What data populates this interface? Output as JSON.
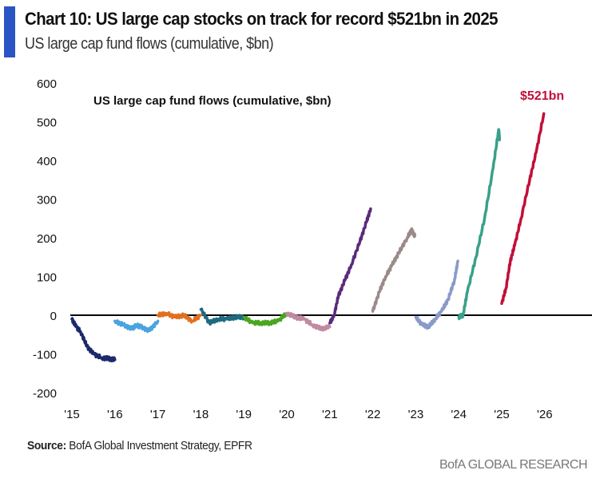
{
  "header": {
    "title": "Chart 10: US large cap stocks on track for record $521bn in 2025",
    "subtitle": "US large cap fund flows (cumulative, $bn)"
  },
  "footer": {
    "source_label": "Source:",
    "source_text": "BofA Global Investment Strategy, EPFR",
    "brand": "BofA GLOBAL RESEARCH"
  },
  "chart_data": {
    "type": "line",
    "title": "US large cap fund flows (cumulative, $bn)",
    "xlabel": "",
    "ylabel": "",
    "ylim": [
      -200,
      600
    ],
    "yticks": [
      "600",
      "500",
      "400",
      "300",
      "200",
      "100",
      "0",
      "-100",
      "-200"
    ],
    "ytick_values": [
      600,
      500,
      400,
      300,
      200,
      100,
      0,
      -100,
      -200
    ],
    "xticks": [
      "'15",
      "'16",
      "'17",
      "'18",
      "'19",
      "'20",
      "'21",
      "'22",
      "'23",
      "'24",
      "'25",
      "'26"
    ],
    "xlim": [
      2015,
      2026.9
    ],
    "annotation": {
      "text": "$521bn",
      "color": "#c0103a"
    },
    "series": [
      {
        "name": "2015",
        "color": "#1b2a6b",
        "start": 2015,
        "points": [
          [
            0,
            -10
          ],
          [
            0.1,
            -30
          ],
          [
            0.2,
            -42
          ],
          [
            0.35,
            -80
          ],
          [
            0.5,
            -100
          ],
          [
            0.7,
            -110
          ],
          [
            0.85,
            -112
          ],
          [
            1,
            -115
          ]
        ]
      },
      {
        "name": "2016",
        "color": "#4aa3e0",
        "start": 2016,
        "points": [
          [
            0,
            -15
          ],
          [
            0.2,
            -25
          ],
          [
            0.4,
            -35
          ],
          [
            0.5,
            -25
          ],
          [
            0.6,
            -30
          ],
          [
            0.8,
            -40
          ],
          [
            1,
            -15
          ]
        ]
      },
      {
        "name": "2017",
        "color": "#e07020",
        "start": 2017,
        "points": [
          [
            0,
            0
          ],
          [
            0.2,
            5
          ],
          [
            0.4,
            -5
          ],
          [
            0.6,
            0
          ],
          [
            0.8,
            -15
          ],
          [
            1,
            0
          ]
        ]
      },
      {
        "name": "2018",
        "color": "#1e6a80",
        "start": 2018,
        "points": [
          [
            0,
            15
          ],
          [
            0.2,
            -20
          ],
          [
            0.4,
            -10
          ],
          [
            0.6,
            -10
          ],
          [
            0.8,
            -5
          ],
          [
            1,
            -5
          ]
        ]
      },
      {
        "name": "2019",
        "color": "#4aa520",
        "start": 2019,
        "points": [
          [
            0,
            -5
          ],
          [
            0.2,
            -20
          ],
          [
            0.4,
            -20
          ],
          [
            0.6,
            -20
          ],
          [
            0.8,
            -15
          ],
          [
            1,
            5
          ]
        ]
      },
      {
        "name": "2020",
        "color": "#c08aa0",
        "start": 2020,
        "points": [
          [
            0,
            5
          ],
          [
            0.2,
            -5
          ],
          [
            0.4,
            -10
          ],
          [
            0.6,
            -25
          ],
          [
            0.8,
            -35
          ],
          [
            1,
            -30
          ]
        ]
      },
      {
        "name": "2021",
        "color": "#5a2a7a",
        "start": 2021,
        "points": [
          [
            0,
            -20
          ],
          [
            0.1,
            0
          ],
          [
            0.2,
            50
          ],
          [
            0.35,
            90
          ],
          [
            0.5,
            130
          ],
          [
            0.7,
            190
          ],
          [
            0.85,
            240
          ],
          [
            0.95,
            275
          ]
        ]
      },
      {
        "name": "2022",
        "color": "#9a8a88",
        "start": 2022,
        "points": [
          [
            0,
            10
          ],
          [
            0.15,
            60
          ],
          [
            0.3,
            100
          ],
          [
            0.45,
            130
          ],
          [
            0.6,
            160
          ],
          [
            0.8,
            200
          ],
          [
            0.9,
            220
          ],
          [
            0.98,
            205
          ]
        ]
      },
      {
        "name": "2023",
        "color": "#8a9ac8",
        "start": 2023,
        "points": [
          [
            0,
            -5
          ],
          [
            0.15,
            -25
          ],
          [
            0.3,
            -30
          ],
          [
            0.45,
            -10
          ],
          [
            0.6,
            10
          ],
          [
            0.75,
            40
          ],
          [
            0.9,
            90
          ],
          [
            0.98,
            140
          ]
        ]
      },
      {
        "name": "2024",
        "color": "#3aa08a",
        "start": 2024,
        "points": [
          [
            0,
            -5
          ],
          [
            0.1,
            0
          ],
          [
            0.2,
            60
          ],
          [
            0.4,
            150
          ],
          [
            0.6,
            250
          ],
          [
            0.8,
            380
          ],
          [
            0.93,
            480
          ],
          [
            0.95,
            455
          ]
        ]
      },
      {
        "name": "2025",
        "color": "#c0103a",
        "start": 2025,
        "points": [
          [
            0,
            30
          ],
          [
            0.1,
            70
          ],
          [
            0.2,
            140
          ],
          [
            0.3,
            180
          ],
          [
            0.45,
            250
          ],
          [
            0.65,
            350
          ],
          [
            0.8,
            420
          ],
          [
            0.98,
            521
          ]
        ]
      }
    ]
  }
}
